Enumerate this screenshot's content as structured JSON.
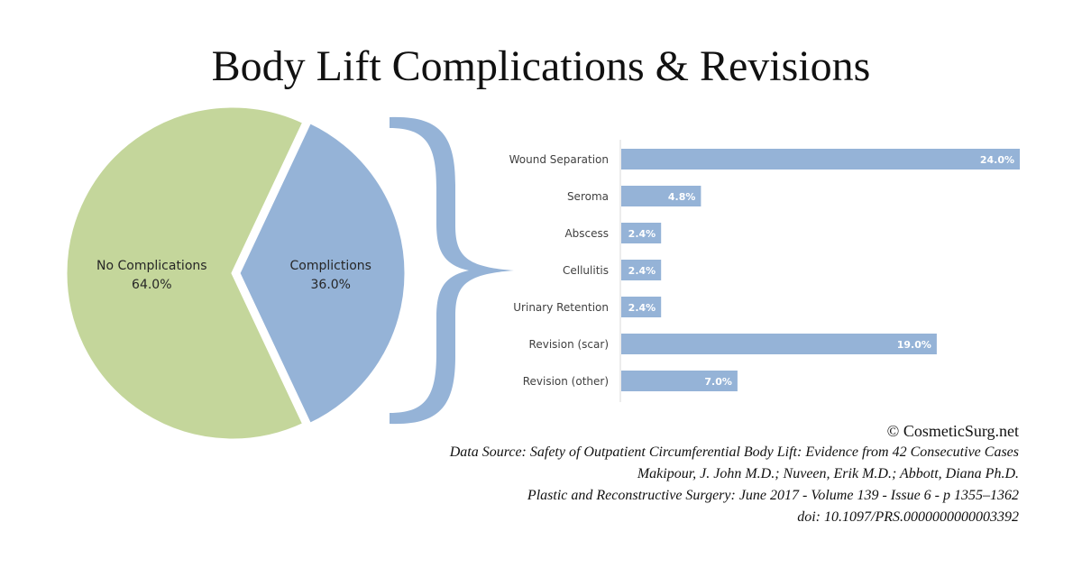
{
  "title": "Body Lift Complications & Revisions",
  "colors": {
    "no_complications": "#c4d69b",
    "complications": "#95b3d7",
    "bar": "#95b3d7",
    "brace": "#95b3d7",
    "axis": "#d9d9d9",
    "label_text": "#404040",
    "bar_label_text": "#ffffff"
  },
  "chart_data": [
    {
      "type": "pie",
      "slices": [
        {
          "label": "No Complications",
          "value": 64.0,
          "display": "64.0%",
          "color": "#c4d69b"
        },
        {
          "label": "Complictions",
          "value": 36.0,
          "display": "36.0%",
          "color": "#95b3d7",
          "exploded": true
        }
      ]
    },
    {
      "type": "bar",
      "orientation": "horizontal",
      "categories": [
        "Wound Separation",
        "Seroma",
        "Abscess",
        "Cellulitis",
        "Urinary Retention",
        "Revision (scar)",
        "Revision (other)"
      ],
      "values": [
        24.0,
        4.8,
        2.4,
        2.4,
        2.4,
        19.0,
        7.0
      ],
      "value_labels": [
        "24.0%",
        "4.8%",
        "2.4%",
        "2.4%",
        "2.4%",
        "19.0%",
        "7.0%"
      ],
      "xlim": [
        0,
        24.0
      ],
      "gridlines": false
    }
  ],
  "credits": {
    "copyright": "©  CosmeticSurg.net",
    "source_line": "Data Source:  Safety of Outpatient Circumferential Body Lift: Evidence from 42 Consecutive Cases",
    "authors_line": "Makipour, J. John M.D.; Nuveen, Erik M.D.; Abbott, Diana Ph.D.",
    "journal_line": "Plastic and Reconstructive Surgery: June 2017 - Volume 139 - Issue 6 - p 1355–1362",
    "doi_line": "doi: 10.1097/PRS.0000000000003392"
  }
}
